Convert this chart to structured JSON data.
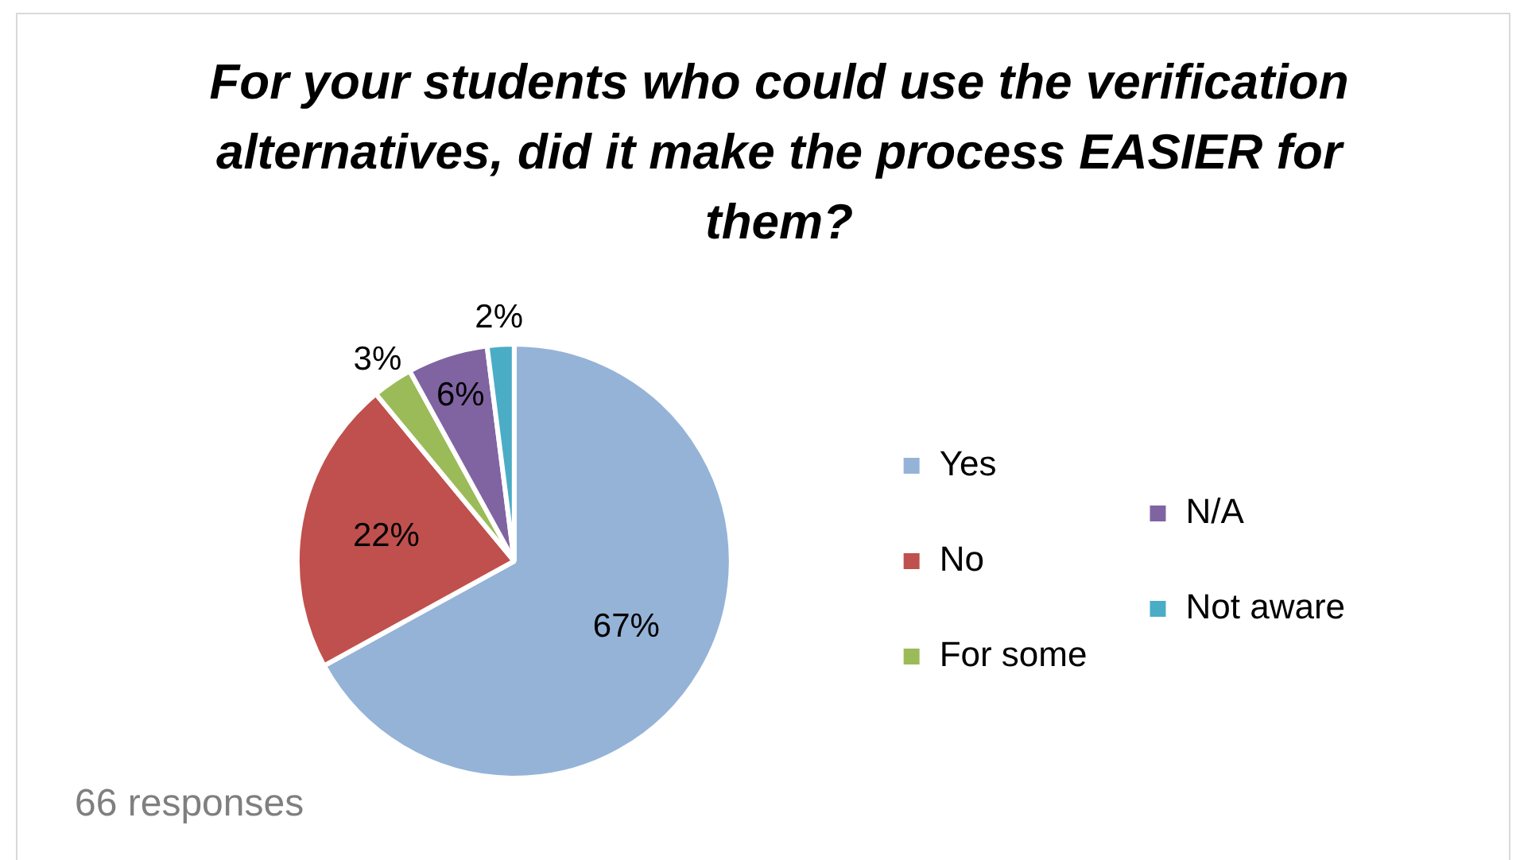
{
  "chart_data": {
    "type": "pie",
    "title": "For your students who could use the verification alternatives, did it make the process EASIER for them?",
    "categories": [
      "Yes",
      "No",
      "For some",
      "N/A",
      "Not aware"
    ],
    "values": [
      67,
      22,
      3,
      6,
      2
    ],
    "colors": [
      "#95b3d7",
      "#c0504d",
      "#9bbb59",
      "#8064a2",
      "#4bacc6"
    ],
    "value_labels": [
      "67%",
      "22%",
      "3%",
      "6%",
      "2%"
    ],
    "legend": "right",
    "annotations": [
      "66 responses"
    ]
  }
}
